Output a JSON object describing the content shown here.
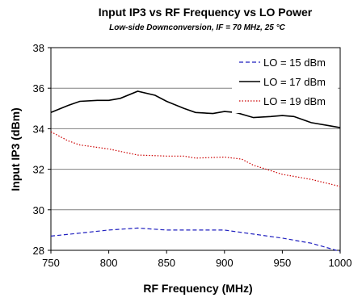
{
  "chart_data": {
    "type": "line",
    "title": "Input IP3 vs RF Frequency vs LO Power",
    "subtitle": "Low-side Downconversion, IF = 70 MHz, 25 °C",
    "xlabel": "RF Frequency (MHz)",
    "ylabel": "Input IP3 (dBm)",
    "xlim": [
      750,
      1000
    ],
    "ylim": [
      28,
      38
    ],
    "xticks": [
      750,
      800,
      850,
      900,
      950,
      1000
    ],
    "yticks": [
      28,
      30,
      32,
      34,
      36,
      38
    ],
    "x_tick_labels": [
      "750",
      "800",
      "850",
      "900",
      "950",
      "1000"
    ],
    "y_tick_labels": [
      "28",
      "30",
      "32",
      "34",
      "36",
      "38"
    ],
    "grid": "horizontal",
    "legend_position": "top-right",
    "series": [
      {
        "name": "LO = 15 dBm",
        "color": "#1f1fbf",
        "dash": "dashed",
        "x": [
          750,
          775,
          800,
          825,
          850,
          875,
          900,
          925,
          950,
          975,
          1000
        ],
        "y": [
          28.7,
          28.85,
          29.0,
          29.1,
          29.0,
          29.0,
          29.0,
          28.8,
          28.6,
          28.35,
          27.95
        ]
      },
      {
        "name": "LO = 17 dBm",
        "color": "#000000",
        "dash": "solid",
        "x": [
          750,
          765,
          775,
          790,
          800,
          810,
          825,
          840,
          850,
          865,
          875,
          890,
          900,
          910,
          925,
          940,
          950,
          960,
          975,
          990,
          1000
        ],
        "y": [
          34.8,
          35.15,
          35.35,
          35.4,
          35.4,
          35.5,
          35.85,
          35.65,
          35.35,
          35.0,
          34.8,
          34.75,
          34.85,
          34.8,
          34.55,
          34.6,
          34.65,
          34.6,
          34.3,
          34.15,
          34.05
        ]
      },
      {
        "name": "LO = 19 dBm",
        "color": "#cc0000",
        "dash": "dotted",
        "x": [
          750,
          765,
          775,
          800,
          825,
          850,
          865,
          875,
          900,
          915,
          925,
          950,
          975,
          1000
        ],
        "y": [
          33.85,
          33.4,
          33.2,
          33.0,
          32.7,
          32.65,
          32.65,
          32.55,
          32.6,
          32.5,
          32.2,
          31.75,
          31.5,
          31.15
        ]
      }
    ]
  }
}
